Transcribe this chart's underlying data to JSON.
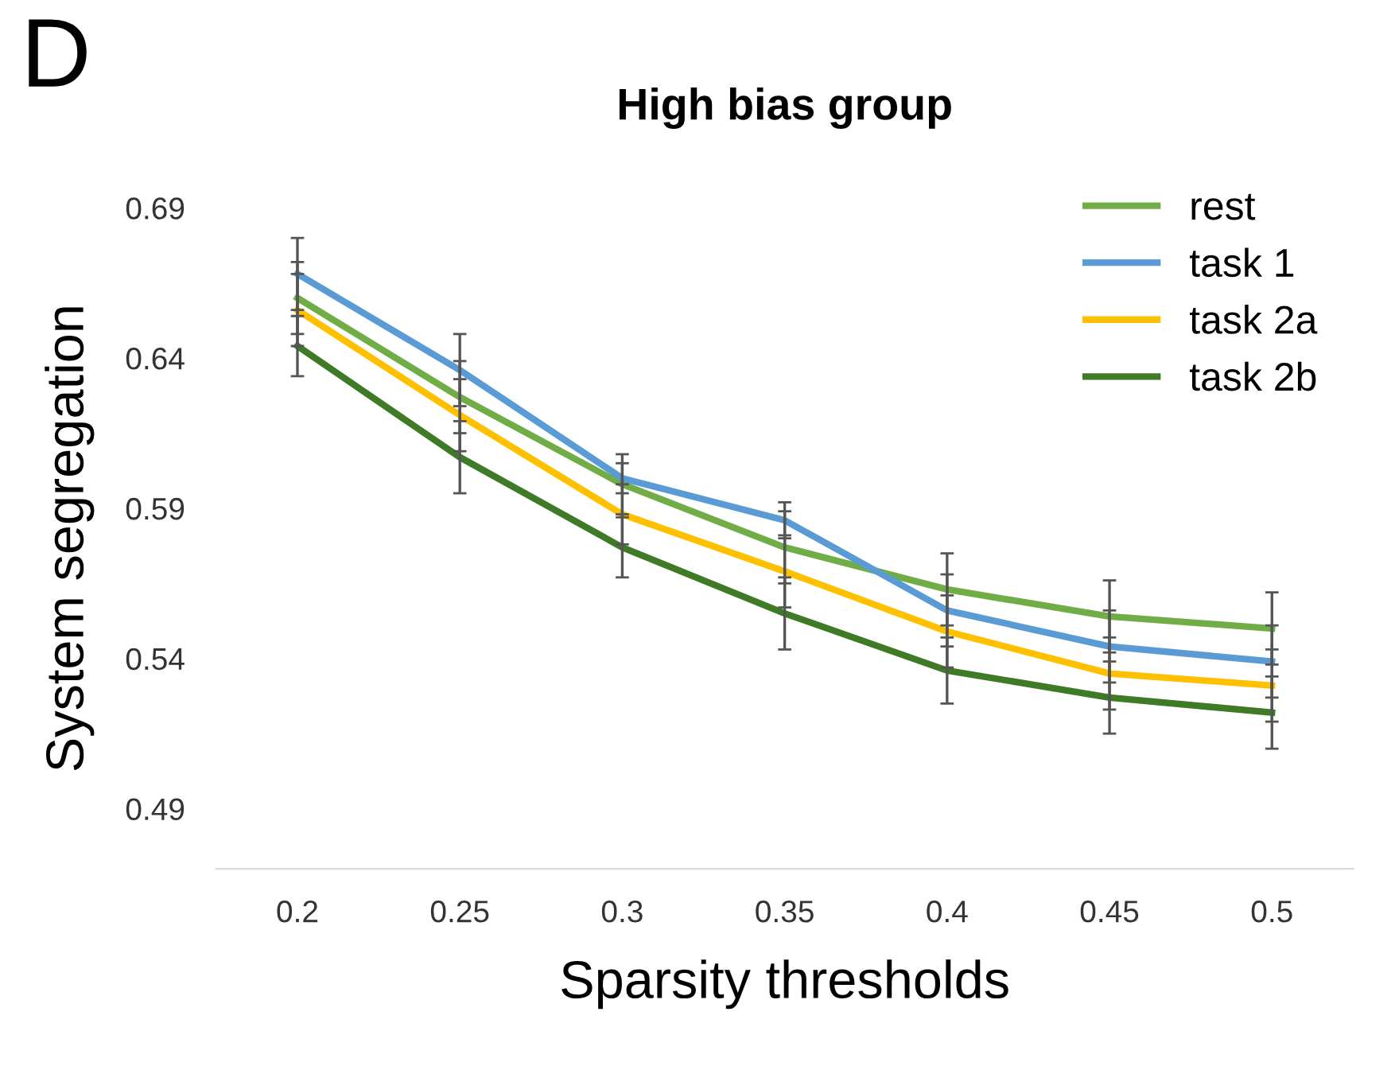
{
  "chart_data": {
    "type": "line",
    "title": "High bias group",
    "xlabel": "Sparsity thresholds",
    "ylabel": "System segregation",
    "annotations": [
      "D"
    ],
    "categories": [
      "0.2",
      "0.25",
      "0.3",
      "0.35",
      "0.4",
      "0.45",
      "0.5"
    ],
    "series": [
      {
        "name": "rest",
        "color": "#70ad47",
        "values": [
          0.66,
          0.627,
          0.598,
          0.577,
          0.563,
          0.554,
          0.55
        ],
        "errors": [
          0.012,
          0.012,
          0.01,
          0.012,
          0.012,
          0.012,
          0.012
        ]
      },
      {
        "name": "task 1",
        "color": "#5b9bd5",
        "values": [
          0.668,
          0.636,
          0.6,
          0.586,
          0.556,
          0.544,
          0.539
        ],
        "errors": [
          0.012,
          0.012,
          0.005,
          0.006,
          0.012,
          0.012,
          0.012
        ]
      },
      {
        "name": "task 2a",
        "color": "#ffc000",
        "values": [
          0.656,
          0.621,
          0.588,
          0.569,
          0.549,
          0.535,
          0.531
        ],
        "errors": [
          0.012,
          0.012,
          0.01,
          0.012,
          0.012,
          0.012,
          0.012
        ]
      },
      {
        "name": "task 2b",
        "color": "#3f7a27",
        "values": [
          0.644,
          0.607,
          0.577,
          0.555,
          0.536,
          0.527,
          0.522
        ],
        "errors": [
          0.01,
          0.012,
          0.01,
          0.012,
          0.011,
          0.012,
          0.012
        ]
      }
    ],
    "ylim": [
      0.47,
      0.69
    ],
    "yticks": [
      0.49,
      0.54,
      0.59,
      0.64,
      0.69
    ],
    "grid": false,
    "legend": "top right",
    "marker": "none",
    "line_style": "solid"
  }
}
